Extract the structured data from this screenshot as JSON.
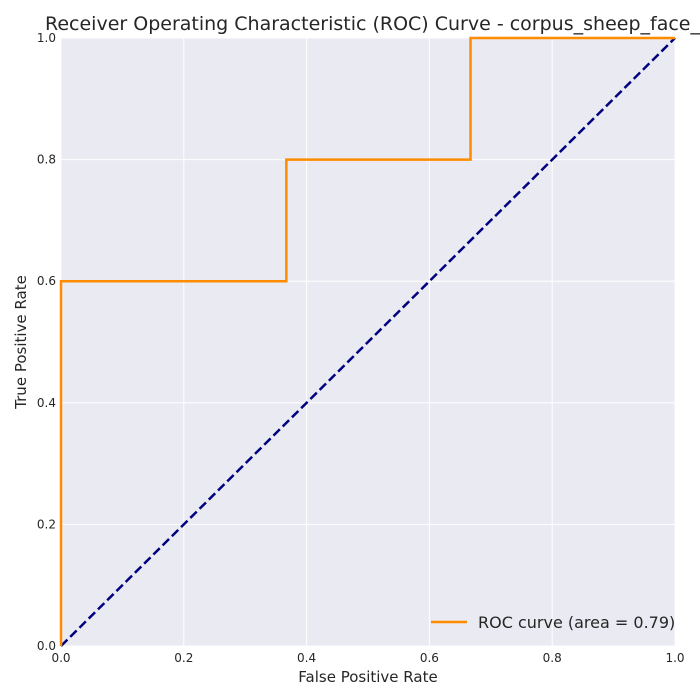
{
  "chart_data": {
    "type": "line",
    "title": "Receiver Operating Characteristic (ROC) Curve - corpus_sheep_face_pain",
    "xlabel": "False Positive Rate",
    "ylabel": "True Positive Rate",
    "xlim": [
      0,
      1
    ],
    "ylim": [
      0,
      1
    ],
    "xticks": [
      0.0,
      0.2,
      0.4,
      0.6,
      0.8,
      1.0
    ],
    "yticks": [
      0.0,
      0.2,
      0.4,
      0.6,
      0.8,
      1.0
    ],
    "xtick_labels": [
      "0.0",
      "0.2",
      "0.4",
      "0.6",
      "0.8",
      "1.0"
    ],
    "ytick_labels": [
      "0.0",
      "0.2",
      "0.4",
      "0.6",
      "0.8",
      "1.0"
    ],
    "grid": true,
    "legend_position": "lower-right",
    "series": [
      {
        "name": "ROC curve (area = 0.79)",
        "style": "solid",
        "color": "#ff8c00",
        "x": [
          0.0,
          0.0,
          0.367,
          0.367,
          0.667,
          0.667,
          1.0
        ],
        "y": [
          0.0,
          0.6,
          0.6,
          0.8,
          0.8,
          1.0,
          1.0
        ]
      },
      {
        "style": "dashed",
        "color": "#000080",
        "x": [
          0.0,
          1.0
        ],
        "y": [
          0.0,
          1.0
        ]
      }
    ]
  },
  "colors": {
    "plot_background": "#eaeaf2",
    "grid": "#ffffff"
  }
}
